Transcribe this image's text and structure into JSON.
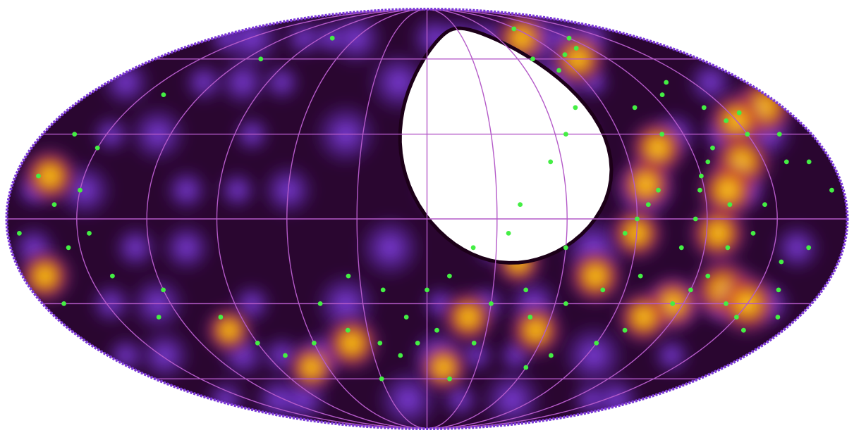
{
  "map": {
    "projection": "mollweide",
    "colormap": [
      "#1c0018",
      "#3a0a4a",
      "#6a2fd0",
      "#8a45f0",
      "#c0302a",
      "#e05a10",
      "#f5a000",
      "#ffe040"
    ],
    "background_color": "#ffffff",
    "masked_region_color": "#ffffff",
    "graticule_color": "#b45ac8",
    "point_color": "#44ee44",
    "meridians_deg": [
      -180,
      -150,
      -120,
      -90,
      -60,
      -30,
      0,
      30,
      60,
      90,
      120,
      150,
      180
    ],
    "parallels_deg": [
      -60,
      -30,
      0,
      30,
      60
    ],
    "hotspots": [
      {
        "lon": 170,
        "lat": 40,
        "w": 0.9
      },
      {
        "lon": 150,
        "lat": 35,
        "w": 0.8
      },
      {
        "lon": 140,
        "lat": 20,
        "w": 0.9
      },
      {
        "lon": 130,
        "lat": 10,
        "w": 0.85
      },
      {
        "lon": 125,
        "lat": -5,
        "w": 0.8
      },
      {
        "lon": 135,
        "lat": -25,
        "w": 0.95
      },
      {
        "lon": 150,
        "lat": -30,
        "w": 0.9
      },
      {
        "lon": 115,
        "lat": -30,
        "w": 0.75
      },
      {
        "lon": 105,
        "lat": -35,
        "w": 0.7
      },
      {
        "lon": 105,
        "lat": 25,
        "w": 0.8
      },
      {
        "lon": 95,
        "lat": 12,
        "w": 0.75
      },
      {
        "lon": 90,
        "lat": -5,
        "w": 0.7
      },
      {
        "lon": 75,
        "lat": -20,
        "w": 0.75
      },
      {
        "lon": 55,
        "lat": -40,
        "w": 0.7
      },
      {
        "lon": 20,
        "lat": -35,
        "w": 0.7
      },
      {
        "lon": 10,
        "lat": -55,
        "w": 0.6
      },
      {
        "lon": 80,
        "lat": 70,
        "w": 0.7
      },
      {
        "lon": 100,
        "lat": 60,
        "w": 0.75
      },
      {
        "lon": 60,
        "lat": 40,
        "w": 0.55
      },
      {
        "lon": -40,
        "lat": -45,
        "w": 0.75
      },
      {
        "lon": -70,
        "lat": -55,
        "w": 0.6
      },
      {
        "lon": -100,
        "lat": -40,
        "w": 0.55
      },
      {
        "lon": -165,
        "lat": 15,
        "w": 0.75
      },
      {
        "lon": -170,
        "lat": -20,
        "w": 0.7
      },
      {
        "lon": 30,
        "lat": 10,
        "w": 0.5
      },
      {
        "lon": 40,
        "lat": -15,
        "w": 0.55
      }
    ],
    "points": [
      {
        "lon": 120,
        "lat": 70
      },
      {
        "lon": 110,
        "lat": 65
      },
      {
        "lon": 95,
        "lat": 62
      },
      {
        "lon": 88,
        "lat": 75
      },
      {
        "lon": 140,
        "lat": 40
      },
      {
        "lon": 145,
        "lat": 35
      },
      {
        "lon": 150,
        "lat": 30
      },
      {
        "lon": 155,
        "lat": 38
      },
      {
        "lon": 130,
        "lat": 25
      },
      {
        "lon": 125,
        "lat": 20
      },
      {
        "lon": 120,
        "lat": 15
      },
      {
        "lon": 118,
        "lat": 10
      },
      {
        "lon": 100,
        "lat": 10
      },
      {
        "lon": 95,
        "lat": 5
      },
      {
        "lon": 90,
        "lat": 0
      },
      {
        "lon": 85,
        "lat": -5
      },
      {
        "lon": 130,
        "lat": -10
      },
      {
        "lon": 125,
        "lat": -20
      },
      {
        "lon": 120,
        "lat": -25
      },
      {
        "lon": 115,
        "lat": -30
      },
      {
        "lon": 140,
        "lat": -30
      },
      {
        "lon": 150,
        "lat": -35
      },
      {
        "lon": 160,
        "lat": -40
      },
      {
        "lon": 170,
        "lat": 20
      },
      {
        "lon": 175,
        "lat": 10
      },
      {
        "lon": 165,
        "lat": -10
      },
      {
        "lon": 100,
        "lat": -40
      },
      {
        "lon": 90,
        "lat": -45
      },
      {
        "lon": 70,
        "lat": -50
      },
      {
        "lon": 60,
        "lat": -55
      },
      {
        "lon": 50,
        "lat": -35
      },
      {
        "lon": 45,
        "lat": -25
      },
      {
        "lon": 30,
        "lat": -30
      },
      {
        "lon": 25,
        "lat": -45
      },
      {
        "lon": 15,
        "lat": -60
      },
      {
        "lon": 10,
        "lat": -20
      },
      {
        "lon": 0,
        "lat": -25
      },
      {
        "lon": -10,
        "lat": -35
      },
      {
        "lon": -15,
        "lat": -50
      },
      {
        "lon": -25,
        "lat": -45
      },
      {
        "lon": -30,
        "lat": -60
      },
      {
        "lon": -40,
        "lat": -40
      },
      {
        "lon": -50,
        "lat": -30
      },
      {
        "lon": -60,
        "lat": -45
      },
      {
        "lon": -80,
        "lat": -50
      },
      {
        "lon": -100,
        "lat": -35
      },
      {
        "lon": -120,
        "lat": -25
      },
      {
        "lon": -140,
        "lat": -20
      },
      {
        "lon": -155,
        "lat": -10
      },
      {
        "lon": -160,
        "lat": 5
      },
      {
        "lon": -170,
        "lat": 15
      },
      {
        "lon": -175,
        "lat": -5
      },
      {
        "lon": -150,
        "lat": 25
      },
      {
        "lon": -140,
        "lat": 45
      },
      {
        "lon": -110,
        "lat": 60
      },
      {
        "lon": -80,
        "lat": 70
      },
      {
        "lon": 75,
        "lat": 40
      },
      {
        "lon": 65,
        "lat": 30
      },
      {
        "lon": 55,
        "lat": 20
      },
      {
        "lon": 40,
        "lat": 5
      },
      {
        "lon": 35,
        "lat": -5
      },
      {
        "lon": 20,
        "lat": -10
      },
      {
        "lon": 105,
        "lat": 40
      },
      {
        "lon": 110,
        "lat": 30
      },
      {
        "lon": 80,
        "lat": 55
      },
      {
        "lon": 70,
        "lat": 60
      },
      {
        "lon": 135,
        "lat": 50
      },
      {
        "lon": 125,
        "lat": 45
      },
      {
        "lon": 145,
        "lat": 5
      },
      {
        "lon": 140,
        "lat": -5
      },
      {
        "lon": 155,
        "lat": -15
      },
      {
        "lon": 160,
        "lat": -25
      },
      {
        "lon": -165,
        "lat": 30
      },
      {
        "lon": -170,
        "lat": -30
      },
      {
        "lon": 170,
        "lat": -35
      },
      {
        "lon": -5,
        "lat": -45
      },
      {
        "lon": 5,
        "lat": -40
      },
      {
        "lon": -20,
        "lat": -25
      },
      {
        "lon": -35,
        "lat": -20
      },
      {
        "lon": 60,
        "lat": -10
      },
      {
        "lon": 65,
        "lat": -30
      },
      {
        "lon": 80,
        "lat": -25
      },
      {
        "lon": 95,
        "lat": -20
      },
      {
        "lon": 110,
        "lat": -10
      },
      {
        "lon": 115,
        "lat": 0
      },
      {
        "lon": 130,
        "lat": 5
      },
      {
        "lon": 160,
        "lat": 20
      },
      {
        "lon": 165,
        "lat": 30
      },
      {
        "lon": -150,
        "lat": 10
      },
      {
        "lon": -145,
        "lat": -5
      },
      {
        "lon": -130,
        "lat": -35
      },
      {
        "lon": -90,
        "lat": -45
      }
    ]
  }
}
